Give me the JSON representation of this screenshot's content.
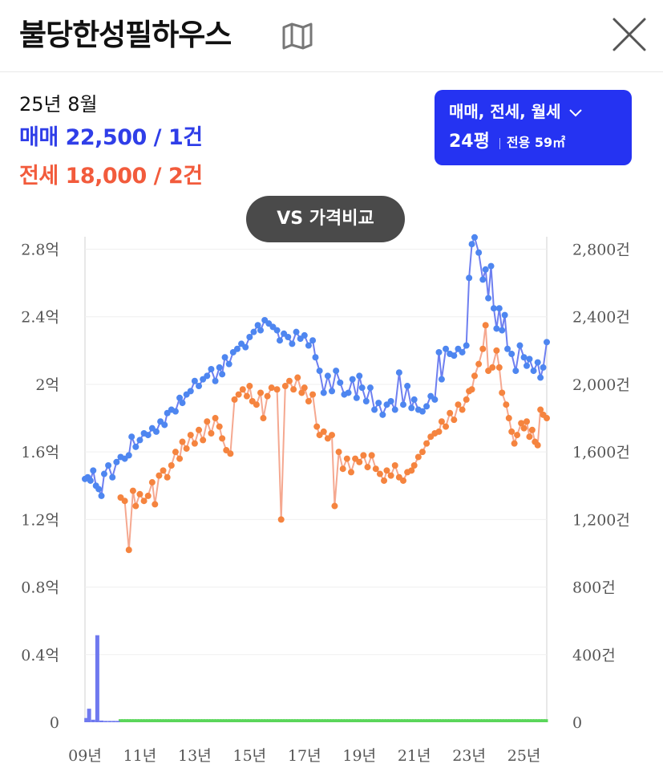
{
  "header": {
    "title": "불당한성필하우스",
    "map_icon": "map-icon",
    "close_icon": "close-icon"
  },
  "summary": {
    "date": "25년 8월",
    "sale_label": "매매",
    "sale_value": "22,500 / 1건",
    "jeonse_label": "전세",
    "jeonse_value": "18,000 / 2건"
  },
  "filter": {
    "types": "매매, 전세, 월세",
    "pyeong": "24평",
    "area": "전용 59㎡"
  },
  "vs_button": "VS 가격비교",
  "colors": {
    "sale": "#4e86f0",
    "sale_line": "#6e7ff0",
    "jeonse": "#f5843f",
    "jeonse_line": "#f5a890",
    "volume_sale": "#6f79ef",
    "volume_rent": "#5ad65a"
  },
  "chart_data": {
    "type": "line",
    "x_ticks": [
      "09년",
      "11년",
      "13년",
      "15년",
      "17년",
      "19년",
      "21년",
      "23년",
      "25년"
    ],
    "x_range": [
      2009.0,
      2025.83
    ],
    "y_left": {
      "ticks": [
        "0",
        "0.4억",
        "0.8억",
        "1.2억",
        "1.6억",
        "2억",
        "2.4억",
        "2.8억"
      ],
      "range": [
        0,
        2.85
      ]
    },
    "y_right": {
      "ticks": [
        "0",
        "400건",
        "800건",
        "1,200건",
        "1,600건",
        "2,000건",
        "2,400건",
        "2,800건"
      ],
      "range": [
        0,
        2850
      ]
    },
    "series": [
      {
        "name": "매매",
        "points": [
          [
            2009.0,
            1.44
          ],
          [
            2009.1,
            1.45
          ],
          [
            2009.2,
            1.43
          ],
          [
            2009.3,
            1.49
          ],
          [
            2009.4,
            1.4
          ],
          [
            2009.5,
            1.38
          ],
          [
            2009.6,
            1.34
          ],
          [
            2009.7,
            1.47
          ],
          [
            2009.85,
            1.52
          ],
          [
            2010.0,
            1.45
          ],
          [
            2010.15,
            1.54
          ],
          [
            2010.3,
            1.57
          ],
          [
            2010.45,
            1.56
          ],
          [
            2010.6,
            1.58
          ],
          [
            2010.7,
            1.69
          ],
          [
            2010.85,
            1.63
          ],
          [
            2011.0,
            1.67
          ],
          [
            2011.15,
            1.71
          ],
          [
            2011.3,
            1.7
          ],
          [
            2011.45,
            1.74
          ],
          [
            2011.6,
            1.72
          ],
          [
            2011.75,
            1.78
          ],
          [
            2011.9,
            1.76
          ],
          [
            2012.0,
            1.83
          ],
          [
            2012.15,
            1.85
          ],
          [
            2012.3,
            1.84
          ],
          [
            2012.45,
            1.92
          ],
          [
            2012.55,
            1.89
          ],
          [
            2012.7,
            1.94
          ],
          [
            2012.85,
            1.96
          ],
          [
            2013.0,
            2.02
          ],
          [
            2013.15,
            1.99
          ],
          [
            2013.3,
            2.03
          ],
          [
            2013.45,
            2.05
          ],
          [
            2013.6,
            2.09
          ],
          [
            2013.75,
            2.02
          ],
          [
            2013.9,
            2.1
          ],
          [
            2014.0,
            2.06
          ],
          [
            2014.1,
            2.16
          ],
          [
            2014.25,
            2.12
          ],
          [
            2014.4,
            2.19
          ],
          [
            2014.55,
            2.21
          ],
          [
            2014.7,
            2.24
          ],
          [
            2014.85,
            2.22
          ],
          [
            2015.0,
            2.28
          ],
          [
            2015.15,
            2.31
          ],
          [
            2015.3,
            2.35
          ],
          [
            2015.4,
            2.32
          ],
          [
            2015.55,
            2.38
          ],
          [
            2015.7,
            2.36
          ],
          [
            2015.85,
            2.34
          ],
          [
            2016.0,
            2.32
          ],
          [
            2016.1,
            2.26
          ],
          [
            2016.25,
            2.3
          ],
          [
            2016.4,
            2.28
          ],
          [
            2016.55,
            2.24
          ],
          [
            2016.7,
            2.31
          ],
          [
            2016.85,
            2.27
          ],
          [
            2017.0,
            2.29
          ],
          [
            2017.15,
            2.23
          ],
          [
            2017.3,
            2.26
          ],
          [
            2017.4,
            2.16
          ],
          [
            2017.55,
            2.08
          ],
          [
            2017.7,
            1.95
          ],
          [
            2017.85,
            2.05
          ],
          [
            2018.0,
            1.96
          ],
          [
            2018.15,
            2.08
          ],
          [
            2018.3,
            2.01
          ],
          [
            2018.45,
            1.94
          ],
          [
            2018.6,
            1.95
          ],
          [
            2018.75,
            2.03
          ],
          [
            2018.9,
            1.92
          ],
          [
            2019.0,
            2.05
          ],
          [
            2019.1,
            1.98
          ],
          [
            2019.25,
            1.9
          ],
          [
            2019.4,
            1.98
          ],
          [
            2019.55,
            1.85
          ],
          [
            2019.7,
            1.89
          ],
          [
            2019.85,
            1.82
          ],
          [
            2020.0,
            1.88
          ],
          [
            2020.15,
            1.9
          ],
          [
            2020.3,
            1.85
          ],
          [
            2020.45,
            2.07
          ],
          [
            2020.6,
            1.88
          ],
          [
            2020.75,
            1.99
          ],
          [
            2020.9,
            1.86
          ],
          [
            2021.0,
            1.91
          ],
          [
            2021.15,
            1.85
          ],
          [
            2021.3,
            1.84
          ],
          [
            2021.45,
            1.87
          ],
          [
            2021.6,
            1.93
          ],
          [
            2021.75,
            1.91
          ],
          [
            2021.9,
            2.19
          ],
          [
            2022.0,
            2.03
          ],
          [
            2022.15,
            2.21
          ],
          [
            2022.3,
            2.18
          ],
          [
            2022.45,
            2.17
          ],
          [
            2022.6,
            2.21
          ],
          [
            2022.75,
            2.19
          ],
          [
            2022.9,
            2.23
          ],
          [
            2023.0,
            2.63
          ],
          [
            2023.1,
            2.83
          ],
          [
            2023.2,
            2.87
          ],
          [
            2023.35,
            2.78
          ],
          [
            2023.5,
            2.62
          ],
          [
            2023.6,
            2.68
          ],
          [
            2023.7,
            2.51
          ],
          [
            2023.8,
            2.7
          ],
          [
            2023.9,
            2.45
          ],
          [
            2024.0,
            2.33
          ],
          [
            2024.1,
            2.45
          ],
          [
            2024.2,
            2.32
          ],
          [
            2024.3,
            2.41
          ],
          [
            2024.4,
            2.21
          ],
          [
            2024.55,
            2.18
          ],
          [
            2024.7,
            2.08
          ],
          [
            2024.85,
            2.23
          ],
          [
            2025.0,
            2.16
          ],
          [
            2025.1,
            2.11
          ],
          [
            2025.2,
            2.15
          ],
          [
            2025.35,
            2.08
          ],
          [
            2025.5,
            2.13
          ],
          [
            2025.6,
            2.04
          ],
          [
            2025.7,
            2.1
          ],
          [
            2025.83,
            2.25
          ]
        ]
      },
      {
        "name": "전세",
        "points": [
          [
            2010.3,
            1.33
          ],
          [
            2010.45,
            1.31
          ],
          [
            2010.6,
            1.02
          ],
          [
            2010.75,
            1.37
          ],
          [
            2010.85,
            1.28
          ],
          [
            2011.0,
            1.35
          ],
          [
            2011.15,
            1.31
          ],
          [
            2011.3,
            1.34
          ],
          [
            2011.45,
            1.42
          ],
          [
            2011.55,
            1.29
          ],
          [
            2011.7,
            1.46
          ],
          [
            2011.85,
            1.49
          ],
          [
            2012.0,
            1.45
          ],
          [
            2012.15,
            1.52
          ],
          [
            2012.3,
            1.6
          ],
          [
            2012.45,
            1.56
          ],
          [
            2012.55,
            1.66
          ],
          [
            2012.7,
            1.62
          ],
          [
            2012.85,
            1.7
          ],
          [
            2013.0,
            1.65
          ],
          [
            2013.15,
            1.73
          ],
          [
            2013.3,
            1.67
          ],
          [
            2013.45,
            1.78
          ],
          [
            2013.6,
            1.71
          ],
          [
            2013.75,
            1.8
          ],
          [
            2013.9,
            1.75
          ],
          [
            2014.0,
            1.68
          ],
          [
            2014.15,
            1.61
          ],
          [
            2014.3,
            1.59
          ],
          [
            2014.45,
            1.91
          ],
          [
            2014.6,
            1.94
          ],
          [
            2014.75,
            1.97
          ],
          [
            2014.9,
            1.93
          ],
          [
            2015.0,
            1.99
          ],
          [
            2015.1,
            1.9
          ],
          [
            2015.25,
            1.88
          ],
          [
            2015.4,
            1.95
          ],
          [
            2015.5,
            1.8
          ],
          [
            2015.65,
            1.93
          ],
          [
            2015.8,
            1.98
          ],
          [
            2016.0,
            1.97
          ],
          [
            2016.15,
            1.2
          ],
          [
            2016.3,
            1.99
          ],
          [
            2016.45,
            2.02
          ],
          [
            2016.6,
            1.97
          ],
          [
            2016.75,
            2.04
          ],
          [
            2016.9,
            1.95
          ],
          [
            2017.0,
            1.98
          ],
          [
            2017.15,
            1.9
          ],
          [
            2017.3,
            1.94
          ],
          [
            2017.45,
            1.75
          ],
          [
            2017.55,
            1.7
          ],
          [
            2017.7,
            1.72
          ],
          [
            2017.85,
            1.68
          ],
          [
            2018.0,
            1.7
          ],
          [
            2018.1,
            1.28
          ],
          [
            2018.25,
            1.6
          ],
          [
            2018.4,
            1.5
          ],
          [
            2018.55,
            1.56
          ],
          [
            2018.7,
            1.48
          ],
          [
            2018.85,
            1.56
          ],
          [
            2019.0,
            1.54
          ],
          [
            2019.15,
            1.58
          ],
          [
            2019.3,
            1.51
          ],
          [
            2019.45,
            1.58
          ],
          [
            2019.6,
            1.5
          ],
          [
            2019.75,
            1.47
          ],
          [
            2019.9,
            1.43
          ],
          [
            2020.0,
            1.49
          ],
          [
            2020.15,
            1.46
          ],
          [
            2020.3,
            1.52
          ],
          [
            2020.45,
            1.45
          ],
          [
            2020.6,
            1.43
          ],
          [
            2020.75,
            1.48
          ],
          [
            2020.9,
            1.49
          ],
          [
            2021.0,
            1.52
          ],
          [
            2021.15,
            1.57
          ],
          [
            2021.3,
            1.6
          ],
          [
            2021.45,
            1.65
          ],
          [
            2021.6,
            1.69
          ],
          [
            2021.75,
            1.71
          ],
          [
            2021.9,
            1.72
          ],
          [
            2022.0,
            1.78
          ],
          [
            2022.15,
            1.75
          ],
          [
            2022.3,
            1.83
          ],
          [
            2022.45,
            1.79
          ],
          [
            2022.6,
            1.88
          ],
          [
            2022.75,
            1.85
          ],
          [
            2022.9,
            1.91
          ],
          [
            2023.0,
            1.96
          ],
          [
            2023.1,
            1.97
          ],
          [
            2023.2,
            2.05
          ],
          [
            2023.35,
            2.12
          ],
          [
            2023.5,
            2.21
          ],
          [
            2023.6,
            2.35
          ],
          [
            2023.7,
            2.08
          ],
          [
            2023.85,
            2.1
          ],
          [
            2024.0,
            2.2
          ],
          [
            2024.1,
            2.1
          ],
          [
            2024.2,
            1.95
          ],
          [
            2024.35,
            1.88
          ],
          [
            2024.45,
            1.8
          ],
          [
            2024.55,
            1.72
          ],
          [
            2024.65,
            1.65
          ],
          [
            2024.75,
            1.7
          ],
          [
            2024.9,
            1.77
          ],
          [
            2025.0,
            1.74
          ],
          [
            2025.1,
            1.78
          ],
          [
            2025.2,
            1.69
          ],
          [
            2025.3,
            1.73
          ],
          [
            2025.4,
            1.66
          ],
          [
            2025.5,
            1.64
          ],
          [
            2025.6,
            1.85
          ],
          [
            2025.7,
            1.82
          ],
          [
            2025.83,
            1.8
          ]
        ]
      }
    ],
    "volume": {
      "sale_bars": [
        [
          2009.05,
          25
        ],
        [
          2009.15,
          80
        ],
        [
          2009.3,
          15
        ],
        [
          2009.45,
          515
        ],
        [
          2009.6,
          10
        ],
        [
          2009.75,
          8
        ],
        [
          2009.9,
          8
        ],
        [
          2010.05,
          8
        ],
        [
          2010.2,
          8
        ]
      ],
      "rent_range": [
        2010.3,
        2025.83
      ],
      "rent_level": 18
    }
  }
}
